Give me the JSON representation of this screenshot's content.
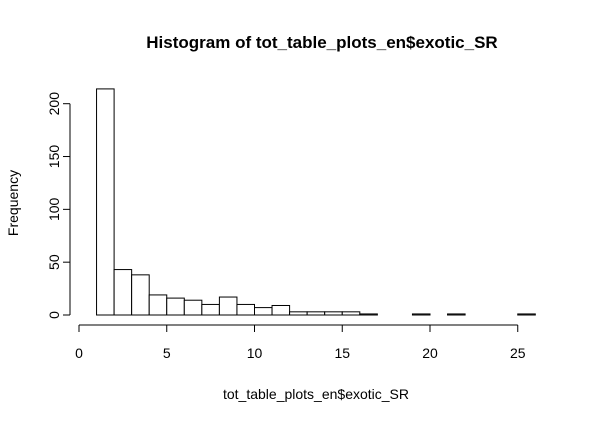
{
  "chart_data": {
    "type": "bar",
    "title": "Histogram of tot_table_plots_en$exotic_SR",
    "xlabel": "tot_table_plots_en$exotic_SR",
    "ylabel": "Frequency",
    "bins": [
      {
        "x0": 1,
        "x1": 2,
        "count": 214
      },
      {
        "x0": 2,
        "x1": 3,
        "count": 43
      },
      {
        "x0": 3,
        "x1": 4,
        "count": 38
      },
      {
        "x0": 4,
        "x1": 5,
        "count": 19
      },
      {
        "x0": 5,
        "x1": 6,
        "count": 16
      },
      {
        "x0": 6,
        "x1": 7,
        "count": 14
      },
      {
        "x0": 7,
        "x1": 8,
        "count": 10
      },
      {
        "x0": 8,
        "x1": 9,
        "count": 17
      },
      {
        "x0": 9,
        "x1": 10,
        "count": 10
      },
      {
        "x0": 10,
        "x1": 11,
        "count": 7
      },
      {
        "x0": 11,
        "x1": 12,
        "count": 9
      },
      {
        "x0": 12,
        "x1": 13,
        "count": 3
      },
      {
        "x0": 13,
        "x1": 14,
        "count": 3
      },
      {
        "x0": 14,
        "x1": 15,
        "count": 3
      },
      {
        "x0": 15,
        "x1": 16,
        "count": 3
      },
      {
        "x0": 16,
        "x1": 17,
        "count": 1
      },
      {
        "x0": 17,
        "x1": 18,
        "count": 0
      },
      {
        "x0": 18,
        "x1": 19,
        "count": 0
      },
      {
        "x0": 19,
        "x1": 20,
        "count": 1
      },
      {
        "x0": 20,
        "x1": 21,
        "count": 0
      },
      {
        "x0": 21,
        "x1": 22,
        "count": 1
      },
      {
        "x0": 22,
        "x1": 23,
        "count": 0
      },
      {
        "x0": 23,
        "x1": 24,
        "count": 0
      },
      {
        "x0": 24,
        "x1": 25,
        "count": 0
      },
      {
        "x0": 25,
        "x1": 26,
        "count": 1
      }
    ],
    "xticks": [
      0,
      5,
      10,
      15,
      20,
      25
    ],
    "yticks": [
      0,
      50,
      100,
      150,
      200
    ],
    "xlim": [
      0,
      26
    ],
    "ylim": [
      0,
      214
    ],
    "grid": false
  }
}
